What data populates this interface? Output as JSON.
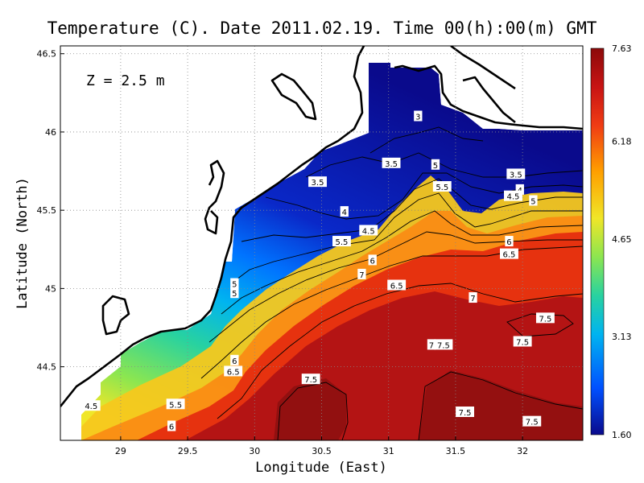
{
  "chart_data": {
    "type": "heatmap",
    "title": "Temperature (C). Date 2011.02.19. Time 00(h):00(m) GMT",
    "xlabel": "Longitude (East)",
    "ylabel": "Latitude (North)",
    "xlim": [
      28.55,
      32.45
    ],
    "ylim": [
      44.03,
      46.55
    ],
    "x_ticks": [
      "29",
      "29.5",
      "30",
      "30.5",
      "31",
      "31.5",
      "32"
    ],
    "x_tick_values": [
      29,
      29.5,
      30,
      30.5,
      31,
      31.5,
      32
    ],
    "y_ticks": [
      "44.5",
      "45",
      "45.5",
      "46",
      "46.5"
    ],
    "y_tick_values": [
      44.5,
      45,
      45.5,
      46,
      46.5
    ],
    "grid": true,
    "depth_label": "Z = 2.5 m",
    "colorbar": {
      "min": 1.6,
      "max": 7.63,
      "labels": [
        "7.63",
        "6.18",
        "4.65",
        "3.13",
        "1.60"
      ],
      "label_values": [
        7.63,
        6.18,
        4.65,
        3.13,
        1.6
      ],
      "colors": [
        "#0a0a8c",
        "#0050ff",
        "#00b4f0",
        "#28d2a0",
        "#8ce650",
        "#f0e628",
        "#ffa000",
        "#f03c14",
        "#c81414",
        "#8c0a0a"
      ]
    },
    "contour_labels": [
      {
        "text": "3",
        "x": 31.22,
        "y": 46.1
      },
      {
        "text": "3.5",
        "x": 31.02,
        "y": 45.8
      },
      {
        "text": "3.5",
        "x": 30.47,
        "y": 45.68
      },
      {
        "text": "3.5",
        "x": 31.95,
        "y": 45.73
      },
      {
        "text": "4",
        "x": 30.67,
        "y": 45.49
      },
      {
        "text": "4",
        "x": 31.98,
        "y": 45.63
      },
      {
        "text": "4.5",
        "x": 30.85,
        "y": 45.37
      },
      {
        "text": "4.5",
        "x": 31.93,
        "y": 45.59
      },
      {
        "text": "4.5",
        "x": 28.78,
        "y": 44.25
      },
      {
        "text": "5",
        "x": 31.35,
        "y": 45.79
      },
      {
        "text": "5",
        "x": 32.08,
        "y": 45.56
      },
      {
        "text": "5",
        "x": 29.85,
        "y": 45.03
      },
      {
        "text": "5",
        "x": 29.85,
        "y": 44.97
      },
      {
        "text": "5.5",
        "x": 31.4,
        "y": 45.65
      },
      {
        "text": "5.5",
        "x": 30.65,
        "y": 45.3
      },
      {
        "text": "5.5",
        "x": 29.41,
        "y": 44.26
      },
      {
        "text": "6",
        "x": 31.9,
        "y": 45.3
      },
      {
        "text": "6",
        "x": 30.88,
        "y": 45.18
      },
      {
        "text": "6",
        "x": 29.85,
        "y": 44.54
      },
      {
        "text": "6",
        "x": 29.38,
        "y": 44.12
      },
      {
        "text": "6.5",
        "x": 31.9,
        "y": 45.22
      },
      {
        "text": "6.5",
        "x": 31.06,
        "y": 45.02
      },
      {
        "text": "6.5",
        "x": 29.84,
        "y": 44.47
      },
      {
        "text": "7",
        "x": 30.8,
        "y": 45.09
      },
      {
        "text": "7",
        "x": 31.63,
        "y": 44.94
      },
      {
        "text": "7",
        "x": 31.32,
        "y": 44.64
      },
      {
        "text": "7.5",
        "x": 31.41,
        "y": 44.64
      },
      {
        "text": "7.5",
        "x": 32.17,
        "y": 44.81
      },
      {
        "text": "7.5",
        "x": 32.0,
        "y": 44.66
      },
      {
        "text": "7.5",
        "x": 30.42,
        "y": 44.42
      },
      {
        "text": "7.5",
        "x": 31.57,
        "y": 44.21
      },
      {
        "text": "7.5",
        "x": 32.07,
        "y": 44.15
      }
    ]
  }
}
